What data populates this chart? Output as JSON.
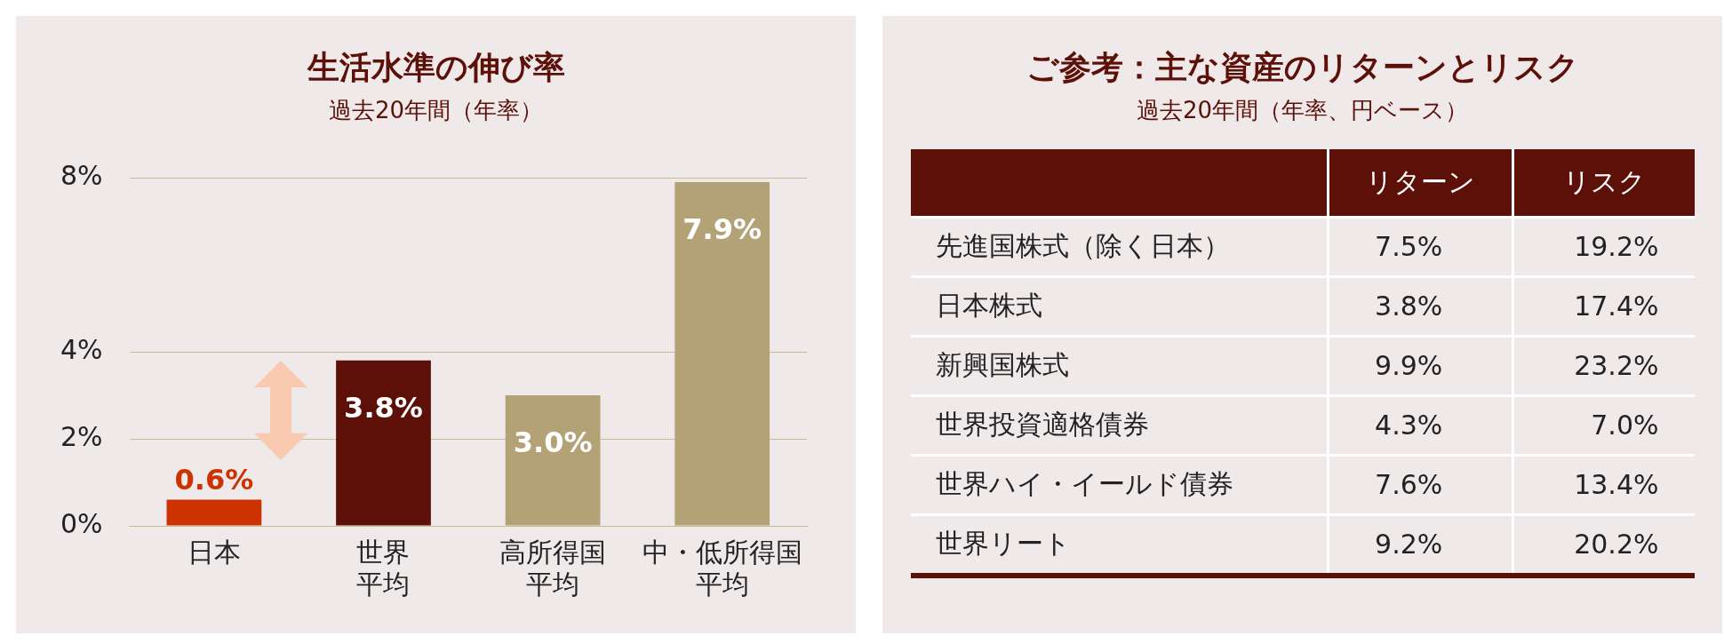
{
  "chart_data": [
    {
      "type": "bar",
      "title": "生活水準の伸び率",
      "subtitle": "過去20年間（年率）",
      "categories": [
        "日本",
        "世界平均",
        "高所得国平均",
        "中・低所得国平均"
      ],
      "values": [
        0.6,
        3.8,
        3.0,
        7.9
      ],
      "colors": [
        "#cc3300",
        "#5c1008",
        "#b3a276",
        "#b3a276"
      ],
      "value_labels": [
        "0.6%",
        "3.8%",
        "3.0%",
        "7.9%"
      ],
      "ylim": [
        0,
        8
      ],
      "yticks": [
        {
          "value": 0,
          "label": "0%"
        },
        {
          "value": 2,
          "label": "2%"
        },
        {
          "value": 4,
          "label": "4%"
        },
        {
          "value": 8,
          "label": "8%"
        }
      ],
      "grid": "y"
    },
    {
      "type": "other",
      "title": "ご参考：主な資産のリターンとリスク",
      "subtitle": "過去20年間（年率、円ベース）",
      "categories": [
        "リターン",
        "リスク"
      ],
      "y_categories": [
        "先進国株式（除く日本）",
        "日本株式",
        "新興国株式",
        "世界投資適格債券",
        "世界ハイ・イールド債券",
        "世界リート"
      ],
      "cell_labels": [
        [
          "7.5%",
          "19.2%"
        ],
        [
          "3.8%",
          "17.4%"
        ],
        [
          "9.9%",
          "23.2%"
        ],
        [
          "4.3%",
          "7.0%"
        ],
        [
          "7.6%",
          "13.4%"
        ],
        [
          "9.2%",
          "20.2%"
        ]
      ]
    }
  ]
}
